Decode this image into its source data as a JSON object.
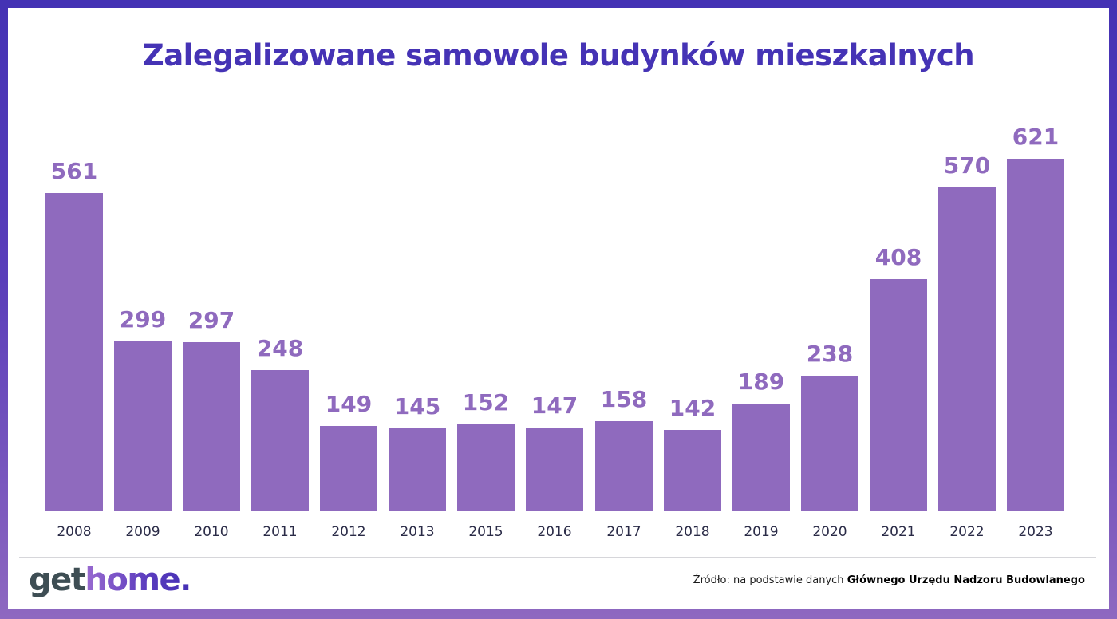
{
  "title": "Zalegalizowane samowole budynków mieszkalnych",
  "chart_data": {
    "type": "bar",
    "title": "Zalegalizowane samowole budynków mieszkalnych",
    "xlabel": "",
    "ylabel": "",
    "categories": [
      "2008",
      "2009",
      "2010",
      "2011",
      "2012",
      "2013",
      "2015",
      "2016",
      "2017",
      "2018",
      "2019",
      "2020",
      "2021",
      "2022",
      "2023"
    ],
    "values": [
      561,
      299,
      297,
      248,
      149,
      145,
      152,
      147,
      158,
      142,
      189,
      238,
      408,
      570,
      621
    ],
    "ylim": [
      0,
      621
    ],
    "grid": false,
    "legend": null,
    "data_labels": true,
    "bar_color": "#8F6ABE"
  },
  "footer": {
    "logo_part1": "get",
    "logo_part2": "home.",
    "source_prefix": "Źródło: na podstawie danych ",
    "source_bold": "Głównego Urzędu Nadzoru Budowlanego"
  },
  "colors": {
    "title": "#4533B5",
    "bar": "#8F6ABE",
    "frame_top": "#4432B4",
    "frame_bottom": "#8E68C0",
    "axis_label": "#2A2B47"
  }
}
